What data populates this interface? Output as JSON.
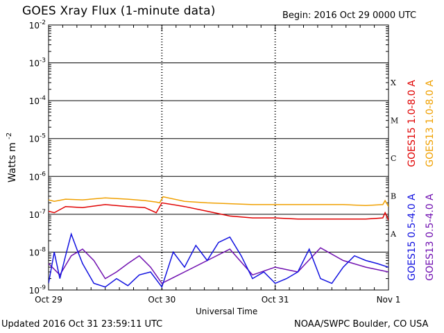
{
  "header": {
    "title": "GOES Xray Flux (1-minute data)",
    "begin": "Begin:  2016 Oct 29 0000 UTC"
  },
  "footer": {
    "updated": "Updated 2016 Oct 31 23:59:11 UTC",
    "credit": "NOAA/SWPC Boulder, CO USA"
  },
  "chart_data": {
    "type": "line",
    "title": "GOES Xray Flux (1-minute data)",
    "xlabel": "Universal Time",
    "ylabel": "Watts m",
    "ylabel_sup": "-2",
    "yscale": "log",
    "ylim": [
      1e-09,
      0.01
    ],
    "xlim": [
      "2016-10-29 00:00",
      "2016-11-01 00:00"
    ],
    "x_ticks": [
      "Oct 29",
      "Oct 30",
      "Oct 31",
      "Nov 1"
    ],
    "y_ticks": [
      {
        "base": "10",
        "exp": "-2"
      },
      {
        "base": "10",
        "exp": "-3"
      },
      {
        "base": "10",
        "exp": "-4"
      },
      {
        "base": "10",
        "exp": "-5"
      },
      {
        "base": "10",
        "exp": "-6"
      },
      {
        "base": "10",
        "exp": "-7"
      },
      {
        "base": "10",
        "exp": "-8"
      },
      {
        "base": "10",
        "exp": "-9"
      }
    ],
    "flare_classes": [
      {
        "label": "X",
        "value": 0.0001
      },
      {
        "label": "M",
        "value": 1e-05
      },
      {
        "label": "C",
        "value": 1e-06
      },
      {
        "label": "B",
        "value": 1e-07
      },
      {
        "label": "A",
        "value": 1e-08
      }
    ],
    "grid": true,
    "legend": [
      {
        "name": "GOES15 1.0-8.0 A",
        "color": "#e00000"
      },
      {
        "name": "GOES13 1.0-8.0 A",
        "color": "#f0a000"
      },
      {
        "name": "GOES15 0.5-4.0 A",
        "color": "#1010e0"
      },
      {
        "name": "GOES13 0.5-4.0 A",
        "color": "#7010b0"
      }
    ],
    "series": [
      {
        "name": "GOES13 1.0-8.0 A",
        "color": "#f0a000",
        "x": [
          0,
          0.05,
          0.15,
          0.3,
          0.5,
          0.7,
          0.85,
          0.95,
          0.98,
          1.01,
          1.2,
          1.4,
          1.6,
          1.8,
          2.0,
          2.2,
          2.4,
          2.6,
          2.8,
          2.95,
          2.97,
          3.0
        ],
        "y": [
          2.4e-07,
          2.2e-07,
          2.5e-07,
          2.4e-07,
          2.7e-07,
          2.5e-07,
          2.3e-07,
          2.1e-07,
          2e-07,
          2.9e-07,
          2.2e-07,
          2e-07,
          1.9e-07,
          1.8e-07,
          1.8e-07,
          1.8e-07,
          1.8e-07,
          1.8e-07,
          1.7e-07,
          1.8e-07,
          2.3e-07,
          1.6e-07
        ]
      },
      {
        "name": "GOES15 1.0-8.0 A",
        "color": "#e00000",
        "x": [
          0,
          0.05,
          0.15,
          0.3,
          0.5,
          0.7,
          0.85,
          0.95,
          1.0,
          1.2,
          1.4,
          1.6,
          1.8,
          2.0,
          2.2,
          2.4,
          2.6,
          2.8,
          2.95,
          2.97,
          3.0
        ],
        "y": [
          1.2e-07,
          1.1e-07,
          1.6e-07,
          1.5e-07,
          1.8e-07,
          1.6e-07,
          1.5e-07,
          1.1e-07,
          2e-07,
          1.6e-07,
          1.2e-07,
          9e-08,
          8e-08,
          8e-08,
          7.5e-08,
          7.5e-08,
          7.5e-08,
          7.5e-08,
          8e-08,
          1.1e-07,
          7e-08
        ]
      },
      {
        "name": "GOES13 0.5-4.0 A",
        "color": "#7010b0",
        "x": [
          0,
          0.1,
          0.2,
          0.3,
          0.4,
          0.5,
          0.6,
          0.7,
          0.8,
          0.9,
          1.0,
          1.2,
          1.4,
          1.6,
          1.8,
          2.0,
          2.2,
          2.4,
          2.6,
          2.8,
          3.0
        ],
        "y": [
          5e-09,
          2.5e-09,
          8e-09,
          1.2e-08,
          6e-09,
          2e-09,
          3e-09,
          5e-09,
          8e-09,
          4e-09,
          1.5e-09,
          3e-09,
          6e-09,
          1.2e-08,
          2.5e-09,
          4e-09,
          3e-09,
          1.3e-08,
          6e-09,
          4e-09,
          3e-09
        ]
      },
      {
        "name": "GOES15 0.5-4.0 A",
        "color": "#1010e0",
        "x": [
          0,
          0.05,
          0.1,
          0.15,
          0.2,
          0.25,
          0.3,
          0.4,
          0.5,
          0.6,
          0.7,
          0.8,
          0.9,
          1.0,
          1.1,
          1.2,
          1.3,
          1.4,
          1.5,
          1.6,
          1.7,
          1.8,
          1.9,
          2.0,
          2.1,
          2.2,
          2.3,
          2.4,
          2.5,
          2.6,
          2.7,
          2.8,
          2.9,
          3.0
        ],
        "y": [
          1.5e-09,
          1e-08,
          2e-09,
          8e-09,
          3e-08,
          1.2e-08,
          5e-09,
          1.5e-09,
          1.2e-09,
          2e-09,
          1.3e-09,
          2.5e-09,
          3e-09,
          1.2e-09,
          1e-08,
          4e-09,
          1.5e-08,
          6e-09,
          1.8e-08,
          2.5e-08,
          8e-09,
          2e-09,
          3e-09,
          1.5e-09,
          2e-09,
          3e-09,
          1.2e-08,
          2e-09,
          1.5e-09,
          4e-09,
          8e-09,
          6e-09,
          5e-09,
          4e-09
        ]
      }
    ]
  }
}
